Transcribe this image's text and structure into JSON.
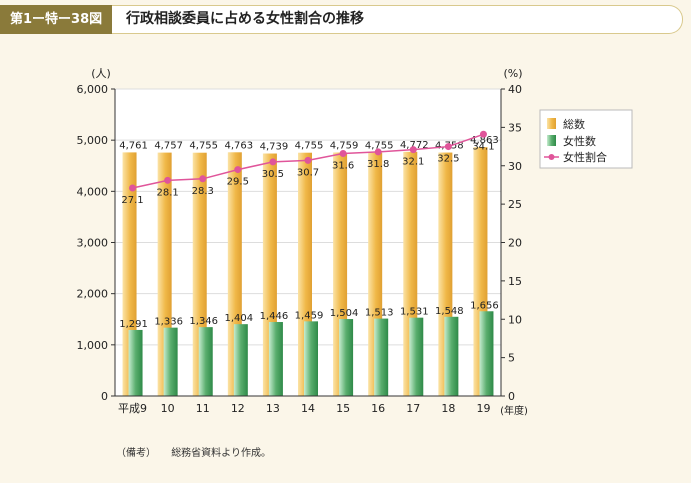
{
  "header": {
    "figure_label": "第1ー特ー38図",
    "title": "行政相談委員に占める女性割合の推移"
  },
  "footnote": {
    "label": "（備考）",
    "text": "総務省資料より作成。"
  },
  "colors": {
    "total_bar": "#f0b848",
    "female_bar": "#5aae6e",
    "ratio_line": "#e0559a"
  },
  "chart_data": {
    "type": "bar",
    "categories": [
      "平成9",
      "10",
      "11",
      "12",
      "13",
      "14",
      "15",
      "16",
      "17",
      "18",
      "19"
    ],
    "xlabel": "(年度)",
    "ylabel_left": "(人)",
    "ylabel_right": "(%)",
    "ylim_left": [
      0,
      6000
    ],
    "yticks_left": [
      "0",
      "1,000",
      "2,000",
      "3,000",
      "4,000",
      "5,000",
      "6,000"
    ],
    "ylim_right": [
      0,
      40
    ],
    "yticks_right": [
      "0",
      "5",
      "10",
      "15",
      "20",
      "25",
      "30",
      "35",
      "40"
    ],
    "legend_position": "right",
    "series": [
      {
        "name": "総数",
        "kind": "bar",
        "values": [
          4761,
          4757,
          4755,
          4763,
          4739,
          4755,
          4759,
          4755,
          4772,
          4758,
          4863
        ],
        "labels": [
          "4,761",
          "4,757",
          "4,755",
          "4,763",
          "4,739",
          "4,755",
          "4,759",
          "4,755",
          "4,772",
          "4,758",
          "4,863"
        ]
      },
      {
        "name": "女性数",
        "kind": "bar",
        "values": [
          1291,
          1336,
          1346,
          1404,
          1446,
          1459,
          1504,
          1513,
          1531,
          1548,
          1656
        ],
        "labels": [
          "1,291",
          "1,336",
          "1,346",
          "1,404",
          "1,446",
          "1,459",
          "1,504",
          "1,513",
          "1,531",
          "1,548",
          "1,656"
        ]
      },
      {
        "name": "女性割合",
        "kind": "line",
        "axis": "right",
        "values": [
          27.1,
          28.1,
          28.3,
          29.5,
          30.5,
          30.7,
          31.6,
          31.8,
          32.1,
          32.5,
          34.1
        ],
        "labels": [
          "27.1",
          "28.1",
          "28.3",
          "29.5",
          "30.5",
          "30.7",
          "31.6",
          "31.8",
          "32.1",
          "32.5",
          "34.1"
        ]
      }
    ]
  }
}
